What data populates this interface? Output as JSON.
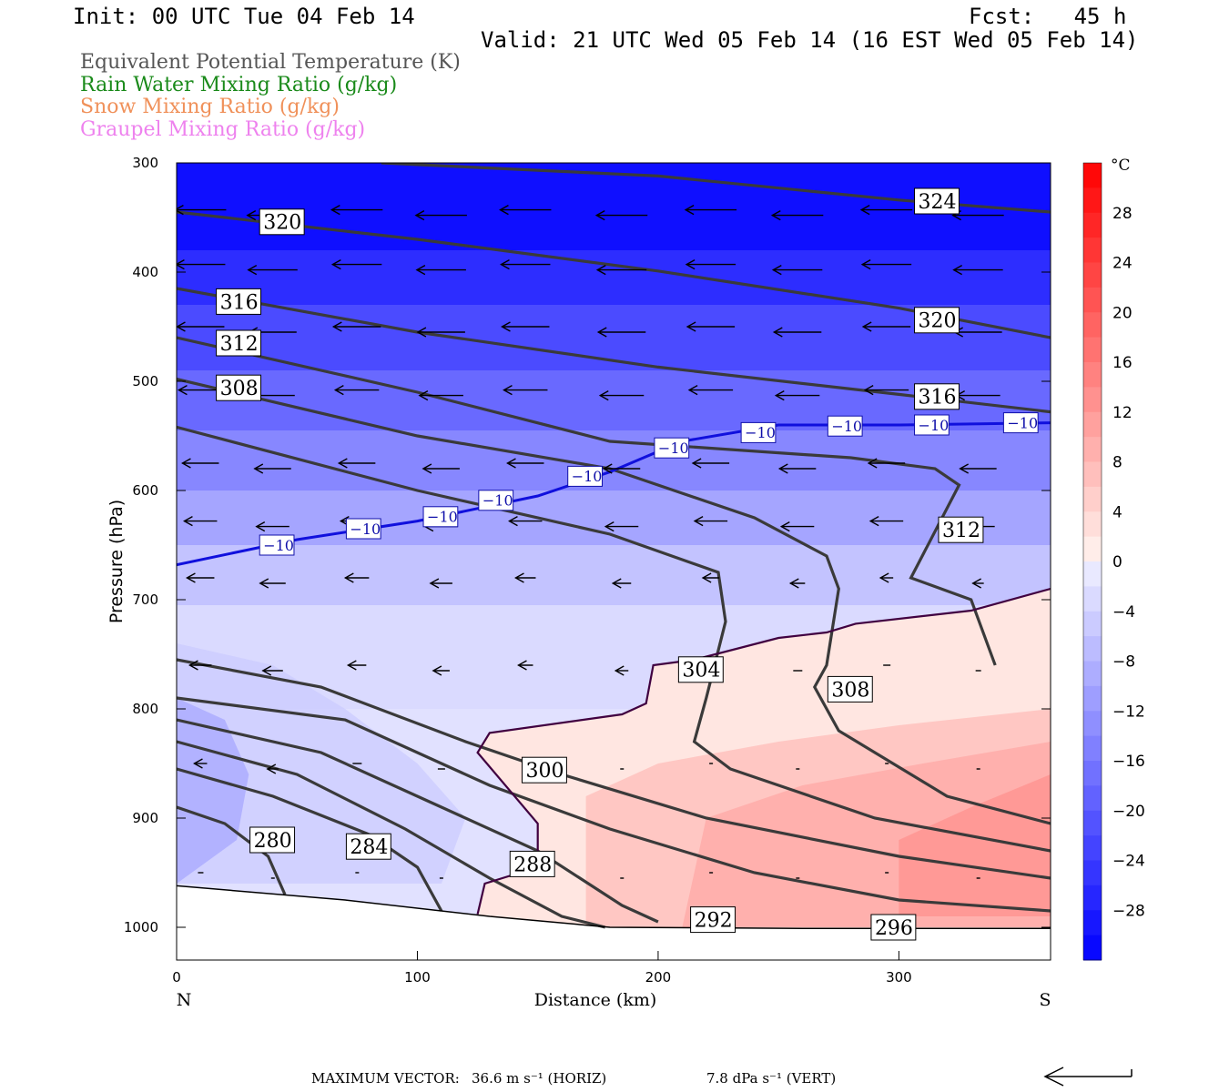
{
  "header": {
    "init": "Init: 00 UTC Tue 04 Feb 14",
    "fcst": "Fcst:   45 h",
    "valid": "Valid: 21 UTC Wed 05 Feb 14 (16 EST Wed 05 Feb 14)"
  },
  "legend": [
    {
      "text": "Equivalent Potential Temperature (K)",
      "color": "#555555"
    },
    {
      "text": "Rain Water Mixing Ratio (g/kg)",
      "color": "#1a8a1a"
    },
    {
      "text": "Snow Mixing Ratio (g/kg)",
      "color": "#f0915a"
    },
    {
      "text": "Graupel Mixing Ratio (g/kg)",
      "color": "#ee82ee"
    }
  ],
  "footer": {
    "max_vector_label": "MAXIMUM VECTOR:",
    "horiz": "36.6 m s⁻¹ (HORIZ)",
    "vert": "7.8 dPa s⁻¹ (VERT)"
  },
  "chart_data": {
    "type": "cross-section",
    "xlabel": "Distance (km)",
    "ylabel": "Pressure (hPa)",
    "xlim": [
      0,
      363
    ],
    "ylim": [
      1030,
      300
    ],
    "x_ticks": [
      0,
      100,
      200,
      300
    ],
    "y_ticks": [
      300,
      400,
      500,
      600,
      700,
      800,
      900,
      1000
    ],
    "x_end_labels": {
      "left": "N",
      "right": "S"
    },
    "colorbar": {
      "unit": "°C",
      "ticks": [
        28,
        24,
        20,
        16,
        12,
        8,
        4,
        0,
        -4,
        -8,
        -12,
        -16,
        -20,
        -24,
        -28
      ],
      "range": [
        -32,
        32
      ]
    },
    "theta_e_contours": [
      {
        "label": "324",
        "points": [
          [
            85,
            300
          ],
          [
            200,
            312
          ],
          [
            300,
            334
          ],
          [
            363,
            345
          ]
        ],
        "label_at": [
          308,
          335
        ]
      },
      {
        "label": "320",
        "points": [
          [
            0,
            345
          ],
          [
            100,
            370
          ],
          [
            200,
            399
          ],
          [
            300,
            433
          ],
          [
            363,
            460
          ]
        ],
        "label_at": [
          36,
          354
        ]
      },
      {
        "label": "320",
        "points": [],
        "label_at": [
          308,
          444
        ]
      },
      {
        "label": "316",
        "points": [
          [
            0,
            415
          ],
          [
            100,
            455
          ],
          [
            200,
            487
          ],
          [
            300,
            512
          ],
          [
            363,
            528
          ]
        ],
        "label_at": [
          18,
          427
        ]
      },
      {
        "label": "316",
        "points": [],
        "label_at": [
          308,
          514
        ]
      },
      {
        "label": "312",
        "points": [
          [
            0,
            460
          ],
          [
            100,
            510
          ],
          [
            180,
            555
          ],
          [
            280,
            570
          ],
          [
            315,
            580
          ],
          [
            325,
            595
          ],
          [
            305,
            680
          ],
          [
            330,
            700
          ],
          [
            340,
            760
          ]
        ],
        "label_at": [
          18,
          465
        ]
      },
      {
        "label": "312",
        "points": [],
        "label_at": [
          318,
          636
        ]
      },
      {
        "label": "308",
        "points": [
          [
            0,
            498
          ],
          [
            100,
            550
          ],
          [
            180,
            580
          ],
          [
            240,
            625
          ],
          [
            270,
            660
          ],
          [
            275,
            690
          ],
          [
            270,
            760
          ],
          [
            265,
            780
          ],
          [
            275,
            820
          ],
          [
            320,
            880
          ],
          [
            363,
            905
          ]
        ],
        "label_at": [
          18,
          506
        ]
      },
      {
        "label": "308",
        "points": [],
        "label_at": [
          272,
          782
        ]
      },
      {
        "label": "304",
        "points": [
          [
            0,
            542
          ],
          [
            100,
            600
          ],
          [
            180,
            640
          ],
          [
            225,
            675
          ],
          [
            228,
            720
          ],
          [
            220,
            790
          ],
          [
            215,
            830
          ],
          [
            230,
            855
          ],
          [
            290,
            900
          ],
          [
            363,
            930
          ]
        ],
        "label_at": [
          210,
          764
        ]
      },
      {
        "label": "300",
        "points": [
          [
            0,
            755
          ],
          [
            60,
            780
          ],
          [
            120,
            830
          ],
          [
            160,
            860
          ],
          [
            220,
            900
          ],
          [
            300,
            935
          ],
          [
            363,
            955
          ]
        ],
        "label_at": [
          145,
          856
        ]
      },
      {
        "label": "296",
        "points": [
          [
            0,
            790
          ],
          [
            70,
            810
          ],
          [
            130,
            870
          ],
          [
            180,
            910
          ],
          [
            240,
            950
          ],
          [
            300,
            975
          ],
          [
            363,
            985
          ]
        ],
        "label_at": [
          290,
          1000
        ]
      },
      {
        "label": "292",
        "points": [
          [
            0,
            810
          ],
          [
            60,
            840
          ],
          [
            110,
            890
          ],
          [
            150,
            930
          ],
          [
            185,
            980
          ],
          [
            200,
            995
          ]
        ],
        "label_at": [
          215,
          993
        ]
      },
      {
        "label": "288",
        "points": [
          [
            0,
            830
          ],
          [
            50,
            860
          ],
          [
            95,
            910
          ],
          [
            130,
            955
          ],
          [
            160,
            990
          ],
          [
            178,
            1000
          ]
        ],
        "label_at": [
          140,
          942
        ]
      },
      {
        "label": "284",
        "points": [
          [
            0,
            855
          ],
          [
            40,
            880
          ],
          [
            80,
            915
          ],
          [
            100,
            945
          ],
          [
            110,
            985
          ]
        ],
        "label_at": [
          72,
          926
        ]
      },
      {
        "label": "280",
        "points": [
          [
            0,
            890
          ],
          [
            20,
            905
          ],
          [
            38,
            935
          ],
          [
            45,
            970
          ]
        ],
        "label_at": [
          32,
          920
        ]
      }
    ],
    "isotherm_minus10": {
      "label": "−10",
      "points": [
        [
          0,
          668
        ],
        [
          50,
          645
        ],
        [
          100,
          628
        ],
        [
          150,
          605
        ],
        [
          180,
          583
        ],
        [
          210,
          555
        ],
        [
          250,
          540
        ],
        [
          300,
          540
        ],
        [
          363,
          538
        ]
      ],
      "labels_at": [
        [
          36,
          650
        ],
        [
          72,
          635
        ],
        [
          104,
          624
        ],
        [
          127,
          609
        ],
        [
          164,
          587
        ],
        [
          200,
          561
        ],
        [
          236,
          547
        ],
        [
          272,
          541
        ],
        [
          308,
          540
        ],
        [
          345,
          538
        ]
      ]
    },
    "freezing_line": {
      "points": [
        [
          125,
          988
        ],
        [
          128,
          960
        ],
        [
          150,
          945
        ],
        [
          150,
          905
        ],
        [
          125,
          840
        ],
        [
          130,
          822
        ],
        [
          185,
          805
        ],
        [
          195,
          795
        ],
        [
          198,
          760
        ],
        [
          215,
          755
        ],
        [
          250,
          735
        ],
        [
          270,
          730
        ],
        [
          282,
          722
        ],
        [
          330,
          710
        ],
        [
          363,
          690
        ]
      ]
    },
    "ground_line": {
      "points": [
        [
          0,
          962
        ],
        [
          70,
          975
        ],
        [
          130,
          990
        ],
        [
          180,
          1000
        ],
        [
          260,
          1001
        ],
        [
          363,
          1001
        ]
      ]
    },
    "temperature_bands": [
      {
        "temp": -30,
        "top": 300,
        "bottom": 395
      },
      {
        "temp": -26,
        "top": 380,
        "bottom": 445
      },
      {
        "temp": -22,
        "top": 430,
        "bottom": 505
      },
      {
        "temp": -18,
        "top": 490,
        "bottom": 560
      },
      {
        "temp": -14,
        "top": 545,
        "bottom": 615
      },
      {
        "temp": -10,
        "top": 600,
        "bottom": 665
      },
      {
        "temp": -6,
        "top": 650,
        "bottom": 720
      },
      {
        "temp": -3,
        "top": 705,
        "bottom": 800
      }
    ]
  }
}
